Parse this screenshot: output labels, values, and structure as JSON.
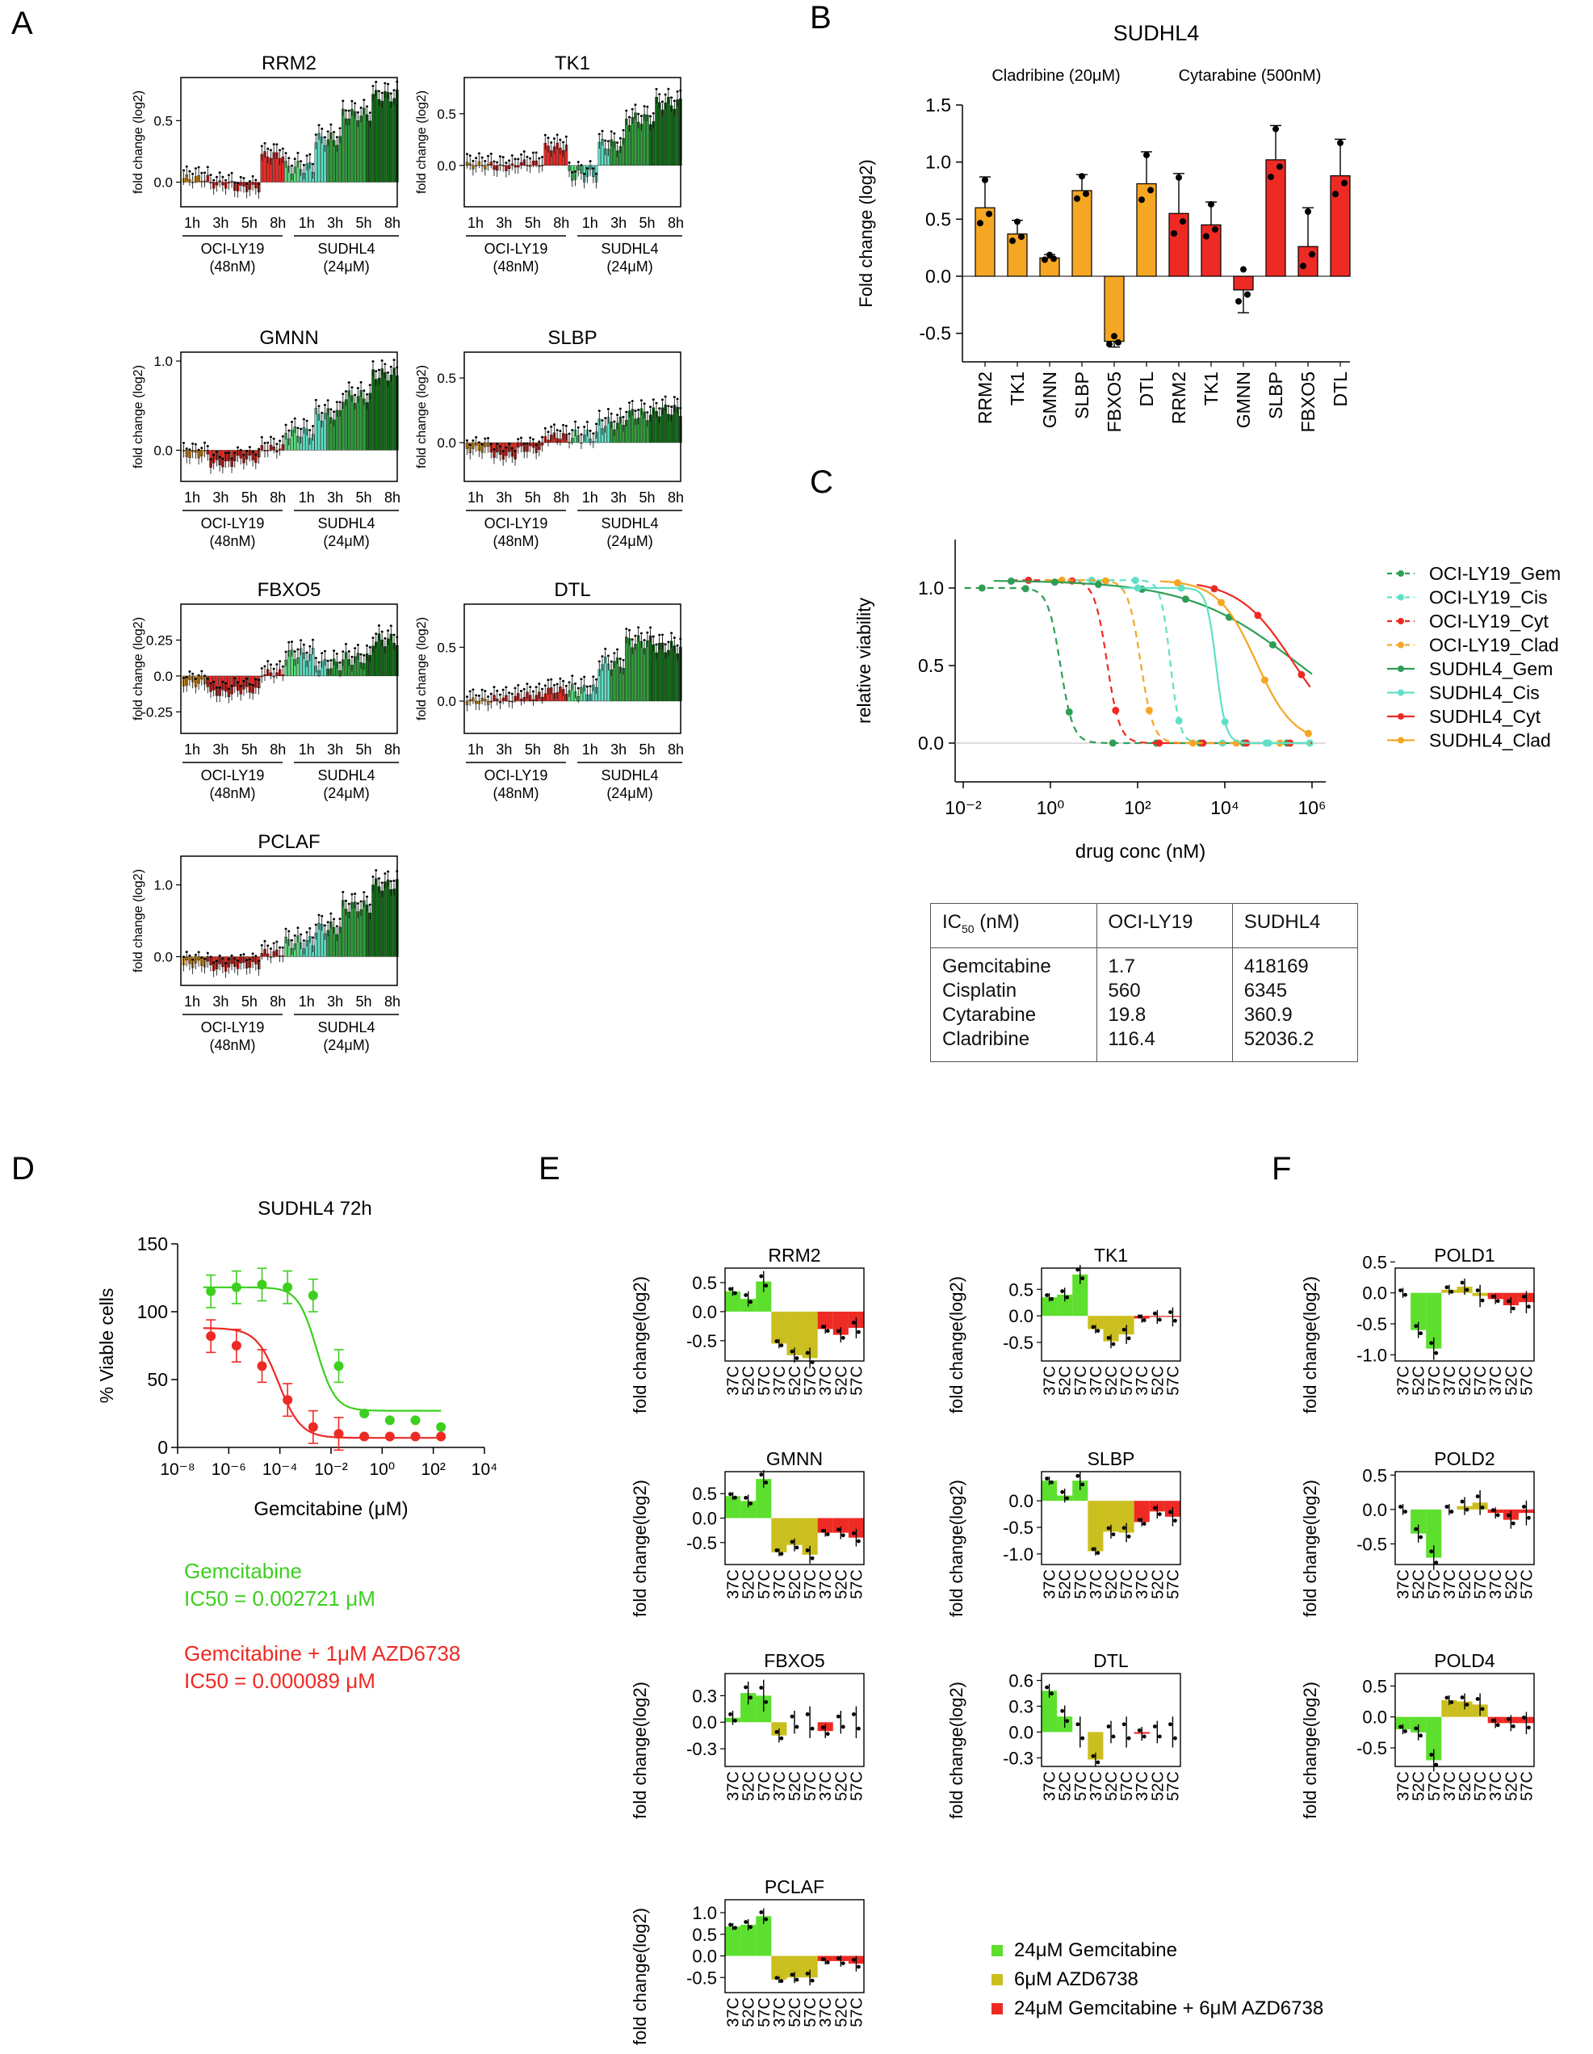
{
  "panels": [
    "A",
    "B",
    "C",
    "D",
    "E",
    "F"
  ],
  "colors": {
    "orange": "#f5a623",
    "red": "#ee2a24",
    "lightgreen": "#5ee07f",
    "green": "#2e9e3a",
    "darkgreen": "#0c6b12",
    "cyan": "#5fe0c6",
    "yellow": "#cbbf1f",
    "brightgreen": "#5ddf2e"
  },
  "panelA": {
    "ylabel": "fold change (log2)",
    "xticks": [
      "1h",
      "3h",
      "5h",
      "8h",
      "1h",
      "3h",
      "5h",
      "8h"
    ],
    "groups": [
      {
        "name": "OCI-LY19",
        "conc": "(48nM)"
      },
      {
        "name": "SUDHL4",
        "conc": "(24μM)"
      }
    ]
  },
  "panelB": {
    "title": "SUDHL4",
    "sub1": "Cladribine (20μM)",
    "sub2": "Cytarabine (500nM)",
    "ylabel": "Fold change (log2)",
    "categories": [
      "RRM2",
      "TK1",
      "GMNN",
      "SLBP",
      "FBXO5",
      "DTL",
      "RRM2",
      "TK1",
      "GMNN",
      "SLBP",
      "FBXO5",
      "DTL"
    ],
    "yticks": [
      "1.5",
      "1.0",
      "0.5",
      "0.0",
      "-0.5"
    ]
  },
  "panelC": {
    "xlabel": "drug conc (nM)",
    "ylabel": "relative viability",
    "xticks": [
      "10⁻²",
      "10⁰",
      "10²",
      "10⁴",
      "10⁶"
    ],
    "yticks": [
      "1.0",
      "0.5",
      "0.0"
    ],
    "legend": [
      "OCI-LY19_Gem",
      "OCI-LY19_Cis",
      "OCI-LY19_Cyt",
      "OCI-LY19_Clad",
      "SUDHL4_Gem",
      "SUDHL4_Cis",
      "SUDHL4_Cyt",
      "SUDHL4_Clad"
    ],
    "table": {
      "header": [
        "IC50 (nM)",
        "OCI-LY19",
        "SUDHL4"
      ],
      "rows": [
        [
          "Gemcitabine",
          "1.7",
          "418169"
        ],
        [
          "Cisplatin",
          "560",
          "6345"
        ],
        [
          "Cytarabine",
          "19.8",
          "360.9"
        ],
        [
          "Cladribine",
          "116.4",
          "52036.2"
        ]
      ]
    }
  },
  "panelD": {
    "title": "SUDHL4 72h",
    "xlabel": "Gemcitabine (μM)",
    "ylabel": "% Viable cells",
    "xticks": [
      "10⁻⁸",
      "10⁻⁶",
      "10⁻⁴",
      "10⁻²",
      "10⁰",
      "10²",
      "10⁴"
    ],
    "yticks": [
      "150",
      "100",
      "50",
      "0"
    ],
    "note1a": "Gemcitabine",
    "note1b": "IC50 = 0.002721 μM",
    "note2a": "Gemcitabine + 1μM AZD6738",
    "note2b": "IC50 = 0.000089 μM"
  },
  "panelEF": {
    "ylabel": "fold change(log2)",
    "xticks": [
      "37C",
      "52C",
      "57C",
      "37C",
      "52C",
      "57C",
      "37C",
      "52C",
      "57C"
    ],
    "legend": [
      "24μM Gemcitabine",
      "6μM AZD6738",
      "24μM Gemcitabine + 6μM AZD6738"
    ]
  },
  "chart_data": [
    {
      "panel": "A",
      "type": "bar",
      "title": "Time-course fold change (log2) per gene; OCI-LY19 (48nM) and SUDHL4 (24μM) at 1h, 3h, 5h, 8h",
      "genes": [
        {
          "title": "RRM2",
          "yticks": [
            0.0,
            0.5
          ],
          "ylim": [
            -0.2,
            0.85
          ],
          "oci": [
            0.03,
            -0.02,
            -0.05,
            0.22
          ],
          "sud": [
            0.12,
            0.35,
            0.55,
            0.7
          ]
        },
        {
          "title": "TK1",
          "yticks": [
            0.0,
            0.5
          ],
          "ylim": [
            -0.4,
            0.85
          ],
          "oci": [
            0.0,
            -0.02,
            0.02,
            0.18
          ],
          "sud": [
            -0.1,
            0.2,
            0.45,
            0.6
          ]
        },
        {
          "title": "GMNN",
          "yticks": [
            0.0,
            1.0
          ],
          "ylim": [
            -0.35,
            1.1
          ],
          "oci": [
            -0.05,
            -0.15,
            -0.1,
            0.02
          ],
          "sud": [
            0.2,
            0.4,
            0.6,
            0.85
          ]
        },
        {
          "title": "SLBP",
          "yticks": [
            0.0,
            0.5
          ],
          "ylim": [
            -0.3,
            0.7
          ],
          "oci": [
            -0.05,
            -0.1,
            -0.05,
            0.05
          ],
          "sud": [
            0.05,
            0.15,
            0.22,
            0.25
          ]
        },
        {
          "title": "FBXO5",
          "yticks": [
            -0.25,
            0.0,
            0.25
          ],
          "ylim": [
            -0.4,
            0.5
          ],
          "oci": [
            -0.05,
            -0.12,
            -0.1,
            0.02
          ],
          "sud": [
            0.15,
            0.08,
            0.12,
            0.25
          ]
        },
        {
          "title": "DTL",
          "yticks": [
            0.0,
            0.5
          ],
          "ylim": [
            -0.3,
            0.9
          ],
          "oci": [
            0.0,
            0.02,
            0.05,
            0.1
          ],
          "sud": [
            0.1,
            0.35,
            0.55,
            0.5
          ]
        },
        {
          "title": "PCLAF",
          "yticks": [
            0.0,
            1.0
          ],
          "ylim": [
            -0.4,
            1.4
          ],
          "oci": [
            -0.1,
            -0.15,
            -0.12,
            0.05
          ],
          "sud": [
            0.2,
            0.4,
            0.7,
            1.0
          ]
        }
      ]
    },
    {
      "panel": "B",
      "type": "bar",
      "title": "SUDHL4",
      "ylabel": "Fold change (log2)",
      "ylim": [
        -0.75,
        1.5
      ],
      "series": [
        {
          "name": "Cladribine (20μM)",
          "values": [
            0.6,
            0.37,
            0.16,
            0.75,
            -0.57,
            0.81
          ],
          "errors": [
            0.27,
            0.12,
            0.03,
            0.14,
            0.05,
            0.28
          ]
        },
        {
          "name": "Cytarabine (500nM)",
          "values": [
            0.55,
            0.45,
            -0.12,
            1.02,
            0.26,
            0.88
          ],
          "errors": [
            0.35,
            0.2,
            0.2,
            0.3,
            0.34,
            0.32
          ]
        }
      ]
    },
    {
      "panel": "C",
      "type": "line",
      "xscale": "log10",
      "xlabel": "drug conc (nM)",
      "ylabel": "relative viability",
      "xlim": [
        0.01,
        1000000
      ],
      "ylim": [
        -0.1,
        1.1
      ],
      "ic50_nM": {
        "OCI-LY19": [
          1.7,
          560,
          19.8,
          116.4
        ],
        "SUDHL4": [
          418169,
          6345,
          360.9,
          52036.2
        ]
      }
    },
    {
      "panel": "D",
      "type": "line",
      "xscale": "log10",
      "title": "SUDHL4 72h",
      "xlabel": "Gemcitabine (μM)",
      "ylabel": "% Viable cells",
      "xlim": [
        1e-08,
        10000
      ],
      "ylim": [
        0,
        150
      ],
      "series": [
        {
          "name": "Gemcitabine",
          "x": [
            1e-07,
            1e-06,
            1e-05,
            0.0001,
            0.001,
            0.01,
            0.1,
            1,
            10,
            100
          ],
          "y": [
            115,
            118,
            120,
            118,
            112,
            60,
            25,
            20,
            20,
            15
          ],
          "ic50": 0.002721
        },
        {
          "name": "Gemcitabine + 1μM AZD6738",
          "x": [
            1e-07,
            1e-06,
            1e-05,
            0.0001,
            0.001,
            0.01,
            0.1,
            1,
            10,
            100
          ],
          "y": [
            82,
            75,
            60,
            35,
            15,
            10,
            8,
            8,
            8,
            8
          ],
          "ic50": 8.9e-05
        }
      ]
    },
    {
      "panel": "E",
      "type": "bar",
      "categories": [
        "37C",
        "52C",
        "57C",
        "37C",
        "52C",
        "57C",
        "37C",
        "52C",
        "57C"
      ],
      "charts": [
        {
          "title": "RRM2",
          "yticks": [
            0.5,
            0.0,
            -0.5
          ],
          "ylim": [
            -0.85,
            0.75
          ],
          "values": [
            0.35,
            0.22,
            0.52,
            -0.55,
            -0.75,
            -0.8,
            -0.3,
            -0.4,
            -0.28
          ]
        },
        {
          "title": "TK1",
          "yticks": [
            0.5,
            0.0,
            -0.5
          ],
          "ylim": [
            -0.85,
            0.9
          ],
          "values": [
            0.35,
            0.4,
            0.78,
            -0.25,
            -0.48,
            -0.35,
            -0.05,
            -0.02,
            -0.02
          ]
        },
        {
          "title": "GMNN",
          "yticks": [
            0.5,
            0.0,
            -0.5
          ],
          "ylim": [
            -0.95,
            0.95
          ],
          "values": [
            0.45,
            0.35,
            0.8,
            -0.7,
            -0.55,
            -0.75,
            -0.3,
            -0.3,
            -0.4
          ]
        },
        {
          "title": "SLBP",
          "yticks": [
            0.0,
            -0.5,
            -1.0
          ],
          "ylim": [
            -1.2,
            0.55
          ],
          "values": [
            0.38,
            0.1,
            0.38,
            -0.95,
            -0.58,
            -0.6,
            -0.4,
            -0.2,
            -0.3
          ]
        },
        {
          "title": "FBXO5",
          "yticks": [
            0.3,
            0.0,
            -0.3
          ],
          "ylim": [
            -0.5,
            0.55
          ],
          "values": [
            0.05,
            0.33,
            0.3,
            -0.15,
            0.0,
            0.0,
            -0.1,
            0.0,
            0.0
          ]
        },
        {
          "title": "DTL",
          "yticks": [
            0.6,
            0.3,
            0.0,
            -0.3
          ],
          "ylim": [
            -0.4,
            0.68
          ],
          "values": [
            0.48,
            0.18,
            0.0,
            -0.32,
            0.0,
            0.0,
            -0.02,
            0.0,
            0.0
          ]
        },
        {
          "title": "PCLAF",
          "yticks": [
            1.0,
            0.5,
            0.0,
            -0.5
          ],
          "ylim": [
            -0.85,
            1.3
          ],
          "values": [
            0.68,
            0.72,
            0.92,
            -0.55,
            -0.5,
            -0.5,
            -0.12,
            -0.12,
            -0.18
          ]
        }
      ]
    },
    {
      "panel": "F",
      "type": "bar",
      "categories": [
        "37C",
        "52C",
        "57C",
        "37C",
        "52C",
        "57C",
        "37C",
        "52C",
        "57C"
      ],
      "charts": [
        {
          "title": "POLD1",
          "yticks": [
            0.5,
            0.0,
            -0.5,
            -1.0
          ],
          "ylim": [
            -1.1,
            0.4
          ],
          "values": [
            0.0,
            -0.6,
            -0.9,
            0.05,
            0.1,
            -0.05,
            -0.1,
            -0.2,
            -0.15
          ]
        },
        {
          "title": "POLD2",
          "yticks": [
            0.5,
            0.0,
            -0.5
          ],
          "ylim": [
            -0.8,
            0.55
          ],
          "values": [
            0.0,
            -0.35,
            -0.7,
            0.0,
            0.05,
            0.1,
            -0.05,
            -0.15,
            -0.05
          ]
        },
        {
          "title": "POLD4",
          "yticks": [
            0.5,
            0.0,
            -0.5
          ],
          "ylim": [
            -0.8,
            0.7
          ],
          "values": [
            -0.2,
            -0.25,
            -0.7,
            0.27,
            0.25,
            0.2,
            -0.1,
            -0.1,
            -0.1
          ]
        }
      ]
    }
  ]
}
